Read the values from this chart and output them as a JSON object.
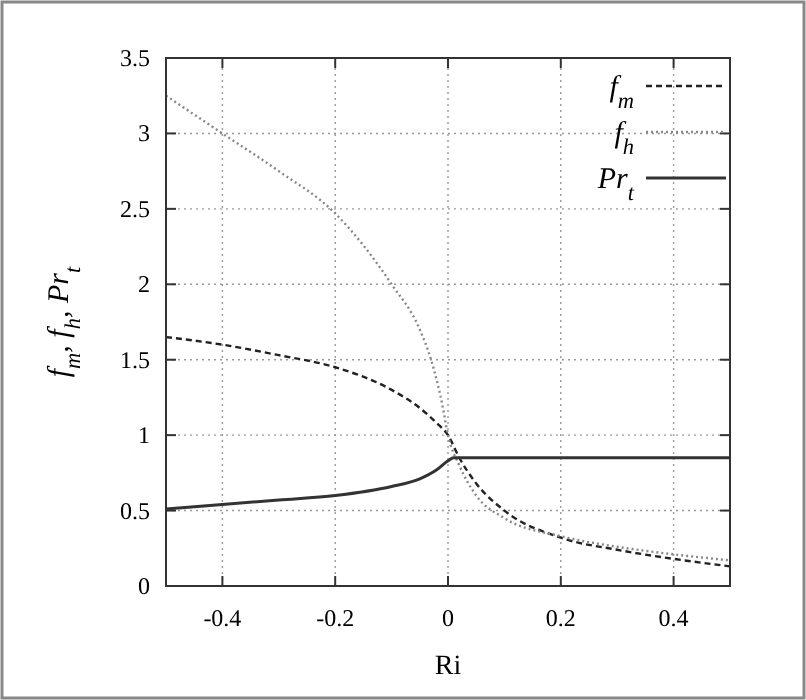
{
  "chart_data": {
    "type": "line",
    "xlabel": "Ri",
    "ylabel": "f$_{m}$, f$_{h}$, Pr$_{t}$",
    "xlim": [
      -0.5,
      0.5
    ],
    "ylim": [
      0,
      3.5
    ],
    "xticks": [
      -0.4,
      -0.2,
      0,
      0.2,
      0.4
    ],
    "yticks": [
      0,
      0.5,
      1,
      1.5,
      2,
      2.5,
      3,
      3.5
    ],
    "grid": true,
    "legend": "top right",
    "series": [
      {
        "name": "f$_{m}$",
        "color": "#222222",
        "line_style": "dashed",
        "x": [
          -0.5,
          -0.4,
          -0.3,
          -0.2,
          -0.1,
          -0.05,
          -0.02,
          0,
          0.02,
          0.05,
          0.1,
          0.2,
          0.3,
          0.4,
          0.5
        ],
        "values": [
          1.65,
          1.6,
          1.53,
          1.45,
          1.3,
          1.18,
          1.08,
          1.0,
          0.85,
          0.68,
          0.5,
          0.32,
          0.24,
          0.18,
          0.13
        ]
      },
      {
        "name": "f$_{h}$",
        "color": "#888888",
        "line_style": "dotted",
        "x": [
          -0.5,
          -0.4,
          -0.3,
          -0.2,
          -0.1,
          -0.05,
          -0.03,
          -0.01,
          0,
          0.02,
          0.05,
          0.1,
          0.2,
          0.3,
          0.4,
          0.5
        ],
        "values": [
          3.25,
          3.0,
          2.75,
          2.47,
          2.0,
          1.7,
          1.5,
          1.2,
          1.0,
          0.8,
          0.6,
          0.45,
          0.33,
          0.26,
          0.21,
          0.17
        ]
      },
      {
        "name": "Pr$_{t}$",
        "color": "#333333",
        "line_style": "solid",
        "x": [
          -0.5,
          -0.4,
          -0.3,
          -0.2,
          -0.1,
          -0.05,
          -0.02,
          0,
          0.01,
          0.5
        ],
        "values": [
          0.51,
          0.54,
          0.57,
          0.6,
          0.66,
          0.71,
          0.77,
          0.83,
          0.85,
          0.85
        ]
      }
    ]
  }
}
